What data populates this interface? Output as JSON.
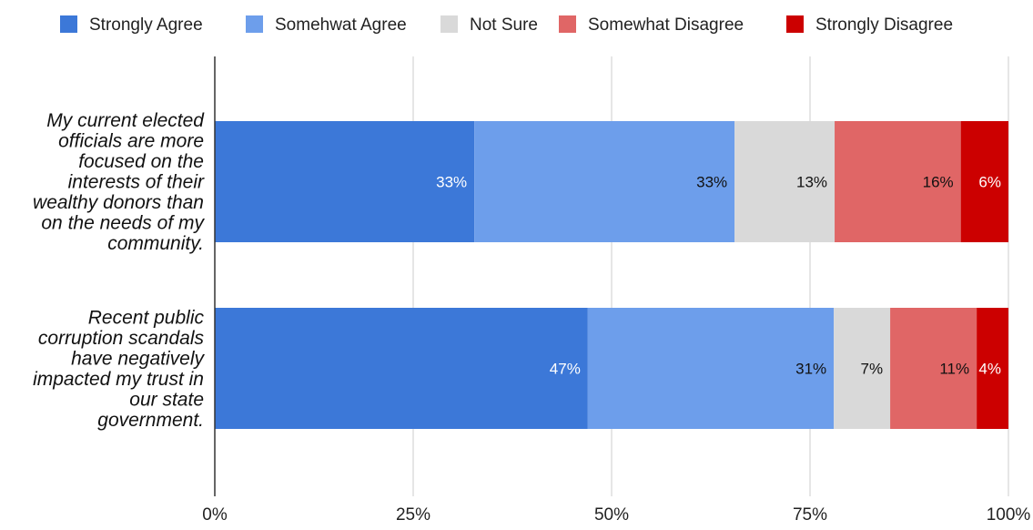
{
  "chart_data": {
    "type": "bar",
    "orientation": "horizontal",
    "stacked": true,
    "percent_stacked": true,
    "title": "",
    "xlabel": "",
    "ylabel": "",
    "xlim": [
      0,
      100
    ],
    "grid": true,
    "legend_position": "top",
    "x_ticks": [
      "0%",
      "25%",
      "50%",
      "75%",
      "100%"
    ],
    "categories": [
      "My current elected officials are more focused on the interests of their wealthy donors than on the needs of my community.",
      "Recent public corruption scandals have negatively impacted my trust in our state government."
    ],
    "category_lines": [
      [
        "My current elected",
        "officials are more",
        "focused on the",
        "interests of their",
        "wealthy donors than",
        "on the needs of my",
        "community."
      ],
      [
        "Recent public",
        "corruption scandals",
        "have negatively",
        "impacted my trust in",
        "our state",
        "government."
      ]
    ],
    "series": [
      {
        "name": "Strongly Agree",
        "color": "#3c78d8",
        "label_color": "#ffffff",
        "values": [
          32.7,
          47.0
        ],
        "labels": [
          "33%",
          "47%"
        ]
      },
      {
        "name": "Somehwat Agree",
        "color": "#6d9eeb",
        "label_color": "#111111",
        "values": [
          32.8,
          31.0
        ],
        "labels": [
          "33%",
          "31%"
        ]
      },
      {
        "name": "Not Sure",
        "color": "#d9d9d9",
        "label_color": "#111111",
        "values": [
          12.6,
          7.1
        ],
        "labels": [
          "13%",
          "7%"
        ]
      },
      {
        "name": "Somewhat Disagree",
        "color": "#e06666",
        "label_color": "#111111",
        "values": [
          15.9,
          10.9
        ],
        "labels": [
          "16%",
          "11%"
        ]
      },
      {
        "name": "Strongly Disagree",
        "color": "#cc0000",
        "label_color": "#ffffff",
        "values": [
          6.0,
          4.0
        ],
        "labels": [
          "6%",
          "4%"
        ]
      }
    ]
  }
}
